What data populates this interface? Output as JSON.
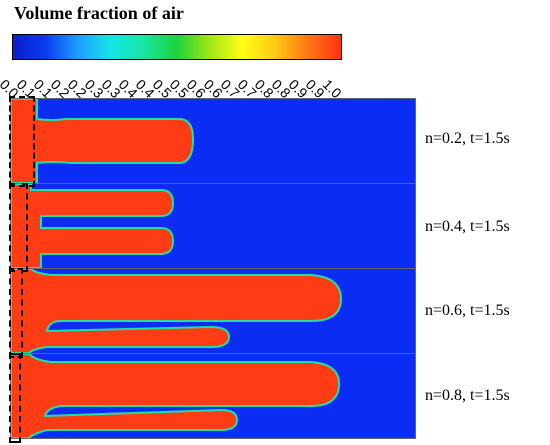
{
  "title": "Volume fraction of air",
  "colorbar_ticks": [
    "0.0",
    "0.1",
    "0.1",
    "0.2",
    "0.2",
    "0.3",
    "0.3",
    "0.4",
    "0.4",
    "0.5",
    "0.5",
    "0.6",
    "0.6",
    "0.7",
    "0.7",
    "0.8",
    "0.8",
    "0.9",
    "0.9",
    "1.0"
  ],
  "panels": [
    {
      "label": "n=0.2,   t=1.5s"
    },
    {
      "label": "n=0.4,   t=1.5s"
    },
    {
      "label": "n=0.6,   t=1.5s"
    },
    {
      "label": "n=0.8,   t=1.5s"
    }
  ],
  "colors": {
    "water": "#0b2cf3",
    "air": "#ff3c14",
    "interface": "#20e0a0"
  }
}
